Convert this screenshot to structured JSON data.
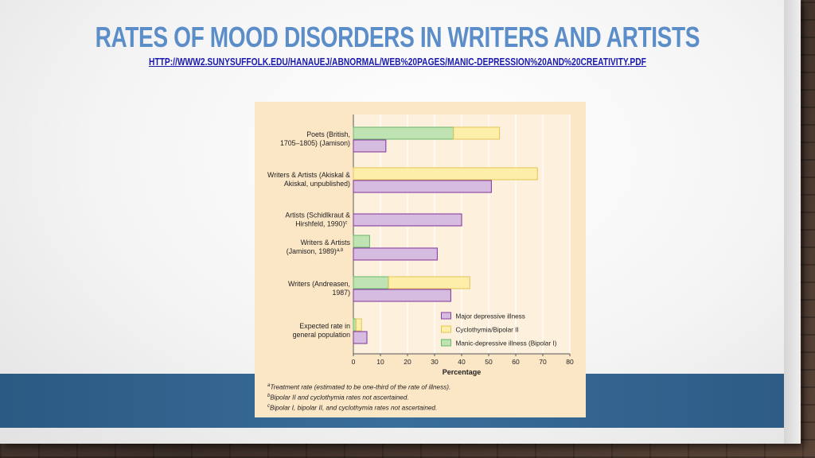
{
  "slide": {
    "title": "Rates of mood disorders in writers and artists",
    "link": "http://www2.sunysuffolk.edu/hanauej/abnormal/web%20pages/manic-depression%20and%20creativity.pdf"
  },
  "colors": {
    "major": "#d6bce0",
    "major_stroke": "#8a3f9e",
    "cyclo": "#fdeeaa",
    "cyclo_stroke": "#e3c454",
    "manic": "#bfe3b2",
    "manic_stroke": "#6ab86b",
    "plot_bg": "#fdf0dd",
    "grid": "#ffffff"
  },
  "chart_data": {
    "type": "bar",
    "orientation": "horizontal",
    "xlabel": "Percentage",
    "xlim": [
      0,
      80
    ],
    "xticks": [
      "0",
      "10",
      "20",
      "30",
      "40",
      "50",
      "60",
      "70",
      "80"
    ],
    "grid": true,
    "legend_position": "bottom-right",
    "groups": [
      {
        "label_lines": [
          "Poets (British,",
          "1705–1805) (Jamison)"
        ],
        "sup": "",
        "manic": 37,
        "cyclo": 17,
        "major": 12
      },
      {
        "label_lines": [
          "Writers & Artists (Akiskal &",
          "Akiskal, unpublished)"
        ],
        "sup": "",
        "manic": 0,
        "cyclo": 68,
        "major": 51
      },
      {
        "label_lines": [
          "Artists (Schidlkraut &",
          "Hirshfeld, 1990)"
        ],
        "sup": "c",
        "manic": null,
        "cyclo": null,
        "major": 40
      },
      {
        "label_lines": [
          "Writers & Artists",
          "(Jamison, 1989)"
        ],
        "sup": "a,b",
        "manic": 6,
        "cyclo": null,
        "major": 31
      },
      {
        "label_lines": [
          "Writers (Andreasen,",
          "1987)"
        ],
        "sup": "",
        "manic": 13,
        "cyclo": 30,
        "major": 36
      },
      {
        "label_lines": [
          "Expected rate in",
          "general population"
        ],
        "sup": "",
        "manic": 1,
        "cyclo": 2,
        "major": 5
      }
    ],
    "legend": [
      {
        "key": "major",
        "label": "Major depressive illness"
      },
      {
        "key": "cyclo",
        "label": "Cyclothymia/Bipolar II"
      },
      {
        "key": "manic",
        "label": "Manic-depressive illness (Bipolar I)"
      }
    ],
    "footnotes": [
      {
        "mark": "a",
        "text": "Treatment rate (estimated to be one-third of the rate of illness)."
      },
      {
        "mark": "b",
        "text": "Bipolar II and cyclothymia rates not ascertained."
      },
      {
        "mark": "c",
        "text": "Bipolar I, bipolar II, and cyclothymia rates not ascertained."
      }
    ]
  }
}
